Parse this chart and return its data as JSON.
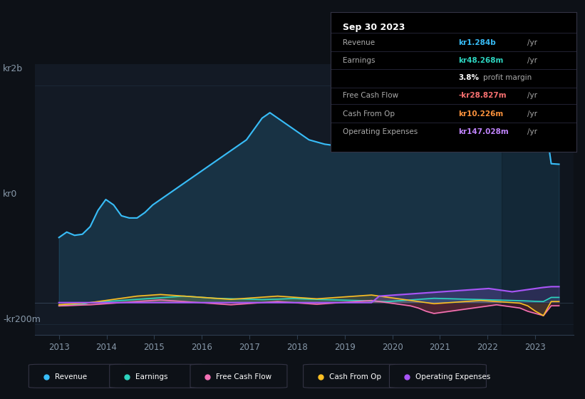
{
  "bg_color": "#0d1117",
  "plot_bg_color": "#131a25",
  "grid_color": "#1e2d3d",
  "title_box": {
    "date": "Sep 30 2023",
    "rows": [
      {
        "label": "Revenue",
        "value": "kr1.284b",
        "value_color": "#38bdf8",
        "suffix": " /yr"
      },
      {
        "label": "Earnings",
        "value": "kr48.268m",
        "value_color": "#2dd4bf",
        "suffix": " /yr"
      },
      {
        "label": "",
        "value": "3.8%",
        "value_color": "#ffffff",
        "suffix": " profit margin"
      },
      {
        "label": "Free Cash Flow",
        "value": "-kr28.827m",
        "value_color": "#f87171",
        "suffix": " /yr"
      },
      {
        "label": "Cash From Op",
        "value": "kr10.226m",
        "value_color": "#fb923c",
        "suffix": " /yr"
      },
      {
        "label": "Operating Expenses",
        "value": "kr147.028m",
        "value_color": "#c084fc",
        "suffix": " /yr"
      }
    ]
  },
  "ylabel_text": "kr2b",
  "ylabel2_text": "kr0",
  "ylabel3_text": "-kr200m",
  "legend": [
    {
      "label": "Revenue",
      "color": "#38bdf8"
    },
    {
      "label": "Earnings",
      "color": "#2dd4bf"
    },
    {
      "label": "Free Cash Flow",
      "color": "#f472b6"
    },
    {
      "label": "Cash From Op",
      "color": "#fbbf24"
    },
    {
      "label": "Operating Expenses",
      "color": "#a855f7"
    }
  ],
  "x_years": [
    2013,
    2014,
    2015,
    2016,
    2017,
    2018,
    2019,
    2020,
    2021,
    2022,
    2023
  ],
  "revenue": [
    600,
    650,
    620,
    630,
    700,
    850,
    950,
    900,
    800,
    780,
    780,
    830,
    900,
    950,
    1000,
    1050,
    1100,
    1150,
    1200,
    1250,
    1300,
    1350,
    1400,
    1450,
    1500,
    1600,
    1700,
    1750,
    1700,
    1650,
    1600,
    1550,
    1500,
    1480,
    1460,
    1450,
    1440,
    1430,
    1420,
    1410,
    1400,
    1450,
    1500,
    1550,
    1600,
    1700,
    1800,
    1900,
    1950,
    1950,
    1920,
    1900,
    1880,
    1860,
    1850,
    1840,
    1830,
    1820,
    1810,
    1800,
    1795,
    1790,
    1785,
    1280,
    1275
  ],
  "earnings": [
    -30,
    -25,
    -20,
    -15,
    0,
    5,
    10,
    15,
    20,
    25,
    30,
    35,
    40,
    45,
    50,
    55,
    60,
    55,
    50,
    45,
    40,
    38,
    36,
    34,
    32,
    30,
    28,
    30,
    32,
    35,
    38,
    35,
    32,
    30,
    28,
    26,
    24,
    22,
    20,
    18,
    15,
    12,
    10,
    15,
    20,
    25,
    30,
    35,
    40,
    38,
    36,
    34,
    32,
    30,
    28,
    26,
    24,
    22,
    20,
    18,
    15,
    12,
    10,
    48,
    48
  ],
  "free_cash_flow": [
    -30,
    -28,
    -25,
    -22,
    -20,
    -15,
    -10,
    -5,
    0,
    5,
    10,
    15,
    20,
    25,
    20,
    15,
    10,
    5,
    0,
    -5,
    -10,
    -15,
    -20,
    -15,
    -10,
    -5,
    0,
    5,
    10,
    5,
    0,
    -5,
    -10,
    -15,
    -10,
    -5,
    0,
    5,
    10,
    15,
    20,
    10,
    0,
    -10,
    -20,
    -30,
    -50,
    -80,
    -100,
    -90,
    -80,
    -70,
    -60,
    -50,
    -40,
    -30,
    -20,
    -30,
    -40,
    -50,
    -80,
    -100,
    -120,
    -29,
    -29
  ],
  "cash_from_op": [
    -20,
    -15,
    -10,
    -5,
    0,
    10,
    20,
    30,
    40,
    50,
    60,
    65,
    70,
    75,
    70,
    65,
    60,
    55,
    50,
    45,
    40,
    35,
    30,
    35,
    40,
    45,
    50,
    55,
    60,
    55,
    50,
    45,
    40,
    35,
    40,
    45,
    50,
    55,
    60,
    65,
    70,
    60,
    50,
    40,
    30,
    20,
    10,
    0,
    -10,
    -5,
    0,
    5,
    10,
    15,
    20,
    15,
    10,
    5,
    0,
    -5,
    -30,
    -80,
    -120,
    10,
    10
  ],
  "operating_expenses": [
    0,
    0,
    0,
    0,
    0,
    0,
    0,
    0,
    0,
    0,
    0,
    0,
    0,
    0,
    0,
    0,
    0,
    0,
    0,
    0,
    0,
    0,
    0,
    0,
    0,
    0,
    0,
    0,
    0,
    0,
    0,
    0,
    0,
    0,
    0,
    0,
    0,
    0,
    0,
    0,
    0,
    60,
    65,
    70,
    75,
    80,
    85,
    90,
    95,
    100,
    105,
    110,
    115,
    120,
    125,
    130,
    120,
    110,
    100,
    110,
    120,
    130,
    140,
    147,
    147
  ],
  "xmin": 2012.5,
  "xmax": 2023.8,
  "ymin": -300,
  "ymax": 2200
}
